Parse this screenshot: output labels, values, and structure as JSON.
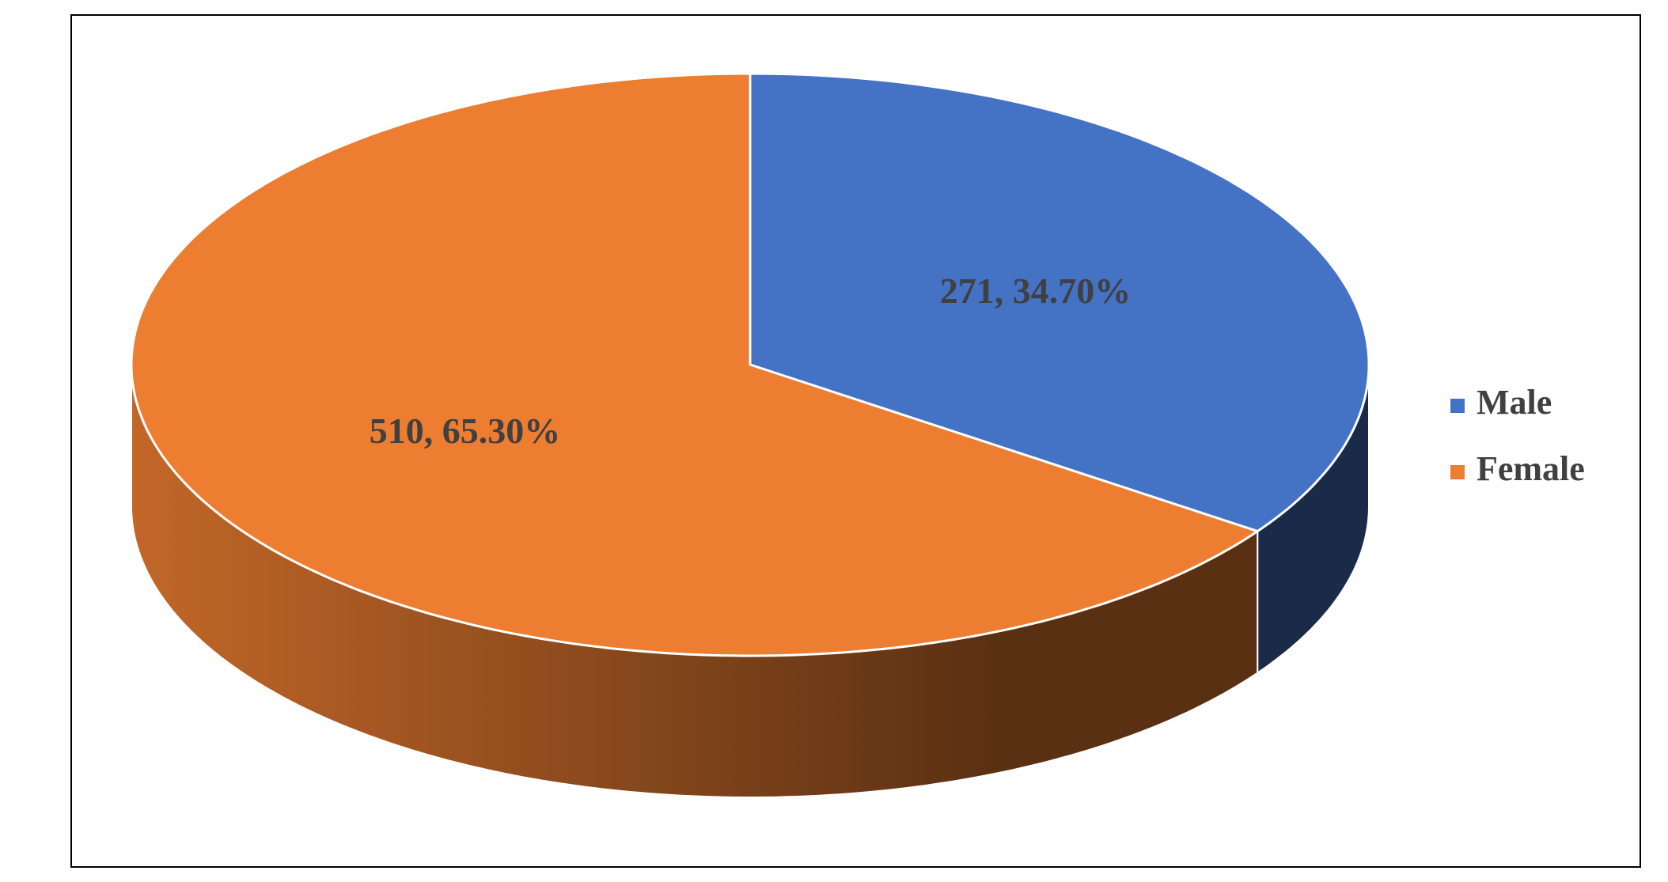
{
  "chart_data": {
    "type": "pie3d",
    "categories": [
      "Male",
      "Female"
    ],
    "values": [
      271,
      510
    ],
    "value_labels": [
      "271, 34.70%",
      "510, 65.30%"
    ],
    "colors": [
      "#4472c4",
      "#ed7d31"
    ],
    "legend": "right"
  }
}
